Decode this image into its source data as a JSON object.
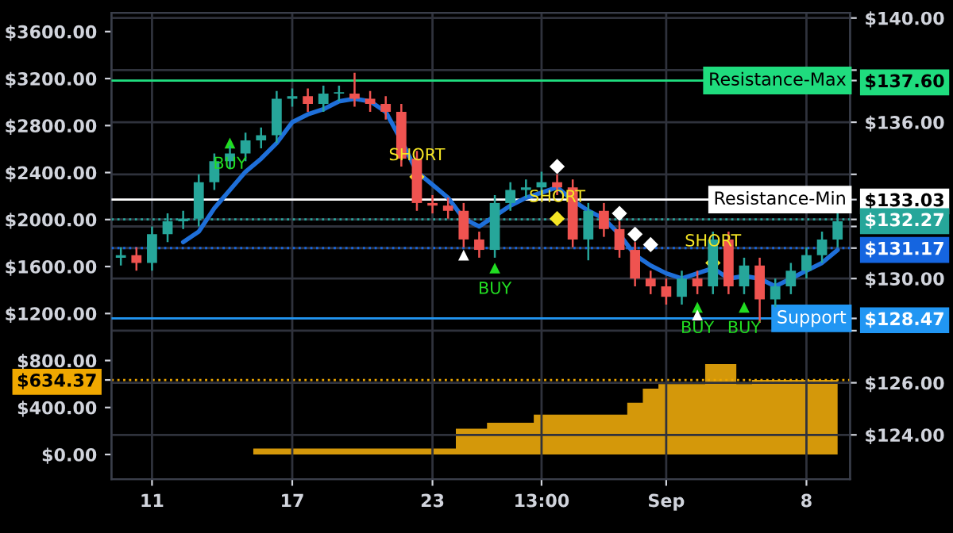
{
  "chart_data": {
    "type": "candlestick",
    "categories": [
      null,
      null,
      "11",
      null,
      null,
      null,
      null,
      null,
      null,
      null,
      null,
      "17",
      null,
      null,
      null,
      null,
      null,
      null,
      null,
      null,
      "23",
      null,
      null,
      null,
      null,
      null,
      null,
      "13:00",
      null,
      null,
      null,
      null,
      null,
      null,
      null,
      "Sep",
      null,
      null,
      null,
      null,
      null,
      null,
      null,
      null,
      "8",
      null,
      null
    ],
    "ohlc": [
      [
        130.8,
        131.2,
        130.5,
        130.9
      ],
      [
        130.9,
        131.2,
        130.3,
        130.6
      ],
      [
        130.6,
        132.0,
        130.3,
        131.7
      ],
      [
        131.7,
        132.5,
        131.4,
        132.2
      ],
      [
        132.2,
        132.6,
        131.9,
        132.3
      ],
      [
        132.3,
        134.0,
        132.0,
        133.7
      ],
      [
        133.7,
        134.8,
        133.4,
        134.5
      ],
      [
        134.5,
        135.1,
        134.2,
        134.8
      ],
      [
        134.8,
        135.6,
        134.5,
        135.3
      ],
      [
        135.3,
        135.8,
        135.0,
        135.5
      ],
      [
        135.5,
        137.2,
        135.2,
        136.9
      ],
      [
        136.9,
        137.3,
        136.6,
        137.0
      ],
      [
        137.0,
        137.3,
        136.4,
        136.7
      ],
      [
        136.7,
        137.4,
        136.4,
        137.1
      ],
      [
        137.1,
        137.4,
        136.8,
        137.1
      ],
      [
        137.1,
        137.9,
        136.6,
        136.9
      ],
      [
        136.9,
        137.2,
        136.4,
        136.7
      ],
      [
        136.7,
        137.0,
        136.1,
        136.4
      ],
      [
        136.4,
        136.7,
        134.3,
        134.6
      ],
      [
        134.6,
        134.9,
        132.6,
        132.9
      ],
      [
        132.9,
        133.2,
        132.5,
        132.8
      ],
      [
        132.8,
        133.1,
        132.3,
        132.6
      ],
      [
        132.6,
        132.9,
        131.2,
        131.5
      ],
      [
        131.5,
        131.8,
        130.8,
        131.1
      ],
      [
        131.1,
        133.2,
        130.8,
        132.9
      ],
      [
        132.9,
        133.7,
        132.6,
        133.4
      ],
      [
        133.4,
        133.8,
        133.1,
        133.5
      ],
      [
        133.5,
        134.1,
        133.2,
        133.7
      ],
      [
        133.7,
        134.0,
        133.2,
        133.5
      ],
      [
        133.5,
        133.8,
        131.2,
        131.5
      ],
      [
        131.5,
        132.9,
        130.7,
        132.6
      ],
      [
        132.6,
        132.9,
        131.6,
        131.9
      ],
      [
        131.9,
        132.2,
        130.8,
        131.1
      ],
      [
        131.1,
        131.4,
        129.7,
        130.0
      ],
      [
        130.0,
        130.3,
        129.4,
        129.7
      ],
      [
        129.7,
        130.0,
        129.0,
        129.3
      ],
      [
        129.3,
        130.3,
        129.0,
        130.0
      ],
      [
        130.0,
        130.3,
        129.4,
        129.7
      ],
      [
        129.7,
        131.8,
        129.4,
        131.5
      ],
      [
        131.5,
        131.8,
        129.4,
        129.7
      ],
      [
        129.7,
        130.8,
        129.4,
        130.5
      ],
      [
        130.5,
        130.8,
        128.3,
        129.2
      ],
      [
        129.2,
        130.0,
        128.9,
        129.7
      ],
      [
        129.7,
        130.6,
        129.4,
        130.3
      ],
      [
        130.3,
        131.2,
        130.0,
        130.9
      ],
      [
        130.9,
        131.8,
        130.6,
        131.5
      ],
      [
        131.5,
        132.5,
        131.2,
        132.2
      ]
    ],
    "ylim": [
      122.3,
      140.2
    ],
    "yticks": [
      {
        "value": 124,
        "label": "$124.00"
      },
      {
        "value": 126,
        "label": "$126.00"
      },
      {
        "value": 128,
        "label": null
      },
      {
        "value": 130,
        "label": "$130.00"
      },
      {
        "value": 132,
        "label": null
      },
      {
        "value": 134,
        "label": null
      },
      {
        "value": 136,
        "label": "$136.00"
      },
      {
        "value": 138,
        "label": null
      },
      {
        "value": 140,
        "label": "$140.00"
      },
      {
        "value": 137.6,
        "label": "$137.60"
      },
      {
        "value": 133.03,
        "label": "$133.03"
      },
      {
        "value": 132.27,
        "label": "$132.27"
      },
      {
        "value": 131.17,
        "label": "$131.17"
      },
      {
        "value": 128.47,
        "label": "$128.47"
      }
    ],
    "y2lim": [
      -210,
      3760
    ],
    "y2ticks": [
      {
        "value": 0,
        "label": "$0.00"
      },
      {
        "value": 400,
        "label": "$400.00"
      },
      {
        "value": 800,
        "label": "$800.00"
      },
      {
        "value": 1200,
        "label": "$1200.00"
      },
      {
        "value": 1600,
        "label": "$1600.00"
      },
      {
        "value": 2000,
        "label": "$2000.00"
      },
      {
        "value": 2400,
        "label": "$2400.00"
      },
      {
        "value": 2800,
        "label": "$2800.00"
      },
      {
        "value": 3200,
        "label": "$3200.00"
      },
      {
        "value": 3600,
        "label": "$3600.00"
      },
      {
        "value": 634.37,
        "label": "$634.37"
      }
    ],
    "grid": true,
    "series": [
      {
        "type": "area",
        "axis": "y2",
        "color": "#d4980a",
        "values": [
          0,
          0,
          0,
          0,
          0,
          0,
          0,
          0,
          0,
          50,
          50,
          50,
          50,
          50,
          50,
          50,
          50,
          50,
          50,
          50,
          50,
          50,
          220,
          220,
          270,
          270,
          270,
          340,
          340,
          340,
          340,
          340,
          340,
          440,
          560,
          600,
          600,
          600,
          770,
          770,
          600,
          634.37,
          634.37,
          634.37,
          634.37,
          634.37,
          634.37
        ]
      },
      {
        "type": "line",
        "color": "#1e6fd9",
        "values": [
          null,
          null,
          null,
          null,
          131.4,
          131.8,
          132.7,
          133.4,
          134.1,
          134.6,
          135.2,
          136.0,
          136.3,
          136.5,
          136.8,
          136.9,
          136.8,
          136.4,
          135.3,
          134.1,
          133.6,
          133.1,
          132.3,
          132.0,
          132.4,
          132.8,
          133.1,
          133.3,
          133.5,
          133.0,
          132.6,
          132.3,
          131.7,
          130.9,
          130.5,
          130.2,
          130.0,
          130.2,
          130.4,
          130.0,
          130.1,
          130.0,
          129.7,
          130.0,
          130.3,
          130.6,
          131.1
        ]
      },
      {
        "type": "scatter",
        "color": "#22dd22",
        "marker": "triangle",
        "values": [
          null,
          null,
          null,
          null,
          null,
          null,
          null,
          135.2,
          null,
          null,
          null,
          null,
          null,
          null,
          null,
          null,
          null,
          null,
          null,
          null,
          null,
          null,
          null,
          null,
          130.4,
          null,
          null,
          null,
          null,
          null,
          null,
          null,
          null,
          null,
          null,
          null,
          null,
          128.9,
          null,
          null,
          128.9,
          null,
          null,
          null,
          null,
          null,
          null
        ],
        "value_labels": [
          null,
          null,
          null,
          null,
          null,
          null,
          null,
          "BUY",
          null,
          null,
          null,
          null,
          null,
          null,
          null,
          null,
          null,
          null,
          null,
          null,
          null,
          null,
          null,
          null,
          "BUY",
          null,
          null,
          null,
          null,
          null,
          null,
          null,
          null,
          null,
          null,
          null,
          null,
          "BUY",
          null,
          null,
          "BUY",
          null,
          null,
          null,
          null,
          null,
          null
        ]
      },
      {
        "type": "scatter",
        "color": "#f5e625",
        "marker": "diamond",
        "values": [
          null,
          null,
          null,
          null,
          null,
          null,
          null,
          null,
          null,
          null,
          null,
          null,
          null,
          null,
          null,
          null,
          null,
          null,
          null,
          133.9,
          null,
          null,
          null,
          null,
          null,
          null,
          null,
          null,
          132.3,
          null,
          null,
          null,
          null,
          null,
          null,
          null,
          null,
          null,
          130.6,
          null,
          null,
          null,
          null,
          null,
          null,
          null,
          null
        ],
        "value_labels": [
          null,
          null,
          null,
          null,
          null,
          null,
          null,
          null,
          null,
          null,
          null,
          null,
          null,
          null,
          null,
          null,
          null,
          null,
          null,
          "SHORT",
          null,
          null,
          null,
          null,
          null,
          null,
          null,
          null,
          "SHORT",
          null,
          null,
          null,
          null,
          null,
          null,
          null,
          null,
          null,
          "SHORT",
          null,
          null,
          null,
          null,
          null,
          null,
          null,
          null
        ]
      },
      {
        "type": "scatter",
        "color": "#ffffff",
        "marker": "diamond",
        "values": [
          null,
          null,
          null,
          null,
          null,
          null,
          null,
          null,
          null,
          null,
          null,
          null,
          null,
          null,
          null,
          null,
          null,
          null,
          null,
          null,
          null,
          null,
          null,
          null,
          null,
          null,
          null,
          null,
          134.3,
          null,
          null,
          null,
          132.5,
          131.7,
          131.3,
          null,
          null,
          null,
          null,
          null,
          null,
          null,
          null,
          null,
          null,
          null,
          null
        ]
      },
      {
        "type": "scatter",
        "color": "#ffffff",
        "marker": "triangle",
        "values": [
          null,
          null,
          null,
          null,
          null,
          null,
          null,
          null,
          null,
          null,
          null,
          null,
          null,
          null,
          null,
          null,
          null,
          null,
          null,
          null,
          null,
          null,
          130.9,
          null,
          null,
          null,
          null,
          null,
          null,
          null,
          null,
          null,
          null,
          null,
          null,
          null,
          null,
          128.6,
          null,
          null,
          null,
          null,
          null,
          null,
          null,
          null,
          null
        ]
      }
    ],
    "ref_lines": [
      {
        "axis": "y",
        "value": 137.6,
        "label": "Resistance-Max",
        "color": "#1fdc7e",
        "line_style": "solid"
      },
      {
        "axis": "y",
        "value": 133.03,
        "label": "Resistance-Min",
        "color": "#ffffff",
        "line_style": "solid"
      },
      {
        "axis": "y",
        "value": 132.27,
        "color": "#26a69a",
        "line_style": "dotted"
      },
      {
        "axis": "y",
        "value": 131.17,
        "color": "#1565e0",
        "line_style": "dotted"
      },
      {
        "axis": "y",
        "value": 128.47,
        "label": "Support",
        "color": "#2196f3",
        "line_style": "solid"
      },
      {
        "axis": "y2",
        "value": 634.37,
        "color": "#f0a800",
        "line_style": "dotted"
      }
    ]
  }
}
